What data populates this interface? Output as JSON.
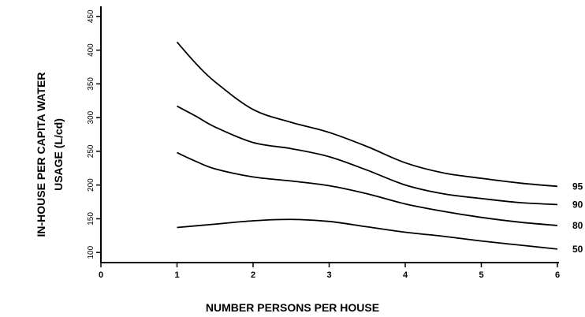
{
  "chart_data": {
    "type": "line",
    "xlabel": "NUMBER PERSONS PER HOUSE",
    "ylabel_line1": "IN-HOUSE PER CAPITA WATER",
    "ylabel_line2": "USAGE (L/cd)",
    "xlim": [
      0,
      6
    ],
    "ylim": [
      85,
      465
    ],
    "x_ticks": [
      "0",
      "1",
      "2",
      "3",
      "4",
      "5",
      "6"
    ],
    "y_ticks": [
      "100",
      "150",
      "200",
      "250",
      "300",
      "350",
      "400",
      "450"
    ],
    "grid": false,
    "series": [
      {
        "name": "95",
        "x": [
          1.0,
          1.25,
          1.5,
          2.0,
          2.5,
          3.0,
          3.5,
          4.0,
          4.5,
          5.0,
          5.5,
          6.0
        ],
        "y": [
          412,
          380,
          353,
          312,
          293,
          278,
          257,
          233,
          218,
          210,
          203,
          198
        ]
      },
      {
        "name": "90",
        "x": [
          1.0,
          1.25,
          1.5,
          2.0,
          2.5,
          3.0,
          3.5,
          4.0,
          4.5,
          5.0,
          5.5,
          6.0
        ],
        "y": [
          317,
          302,
          286,
          263,
          254,
          242,
          222,
          200,
          187,
          180,
          174,
          171
        ]
      },
      {
        "name": "80",
        "x": [
          1.0,
          1.25,
          1.5,
          2.0,
          2.5,
          3.0,
          3.5,
          4.0,
          4.5,
          5.0,
          5.5,
          6.0
        ],
        "y": [
          248,
          235,
          224,
          212,
          206,
          199,
          187,
          172,
          161,
          152,
          145,
          140
        ]
      },
      {
        "name": "50",
        "x": [
          1.0,
          1.5,
          2.0,
          2.5,
          3.0,
          3.5,
          4.0,
          4.5,
          5.0,
          5.5,
          6.0
        ],
        "y": [
          137,
          142,
          147,
          149,
          146,
          138,
          130,
          124,
          117,
          111,
          105
        ]
      }
    ]
  }
}
